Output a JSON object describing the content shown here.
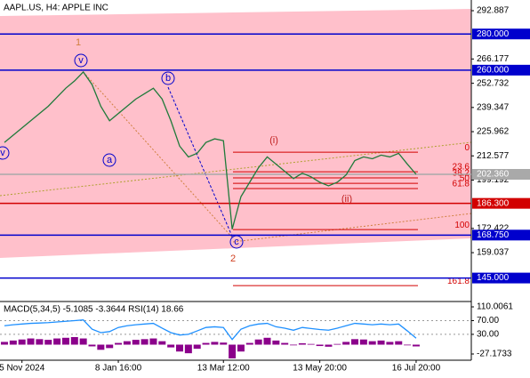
{
  "chart_data": {
    "type": "line",
    "title": "AAPL.US, H4:  APPLE INC",
    "categories": [
      null,
      null,
      "5 Nov 2024",
      null,
      null,
      null,
      null,
      null,
      null,
      null,
      null,
      null,
      null,
      "8 Jan 16:00",
      null,
      null,
      null,
      null,
      null,
      null,
      null,
      null,
      null,
      null,
      null,
      "13 Mar 12:00",
      null,
      null,
      null,
      null,
      null,
      null,
      null,
      null,
      null,
      null,
      "13 May 20:00",
      null,
      null,
      null,
      null,
      null,
      null,
      null,
      null,
      null,
      null,
      "16 Jul 20:00"
    ],
    "values": [
      220,
      224,
      228,
      232,
      236,
      240,
      245,
      250,
      254,
      259,
      252,
      240,
      232,
      236,
      240,
      244,
      247,
      250,
      244,
      232,
      218,
      212,
      214,
      220,
      222,
      221,
      172,
      190,
      198,
      206,
      212,
      208,
      204,
      200,
      203,
      201,
      198,
      196,
      198,
      202,
      210,
      212,
      211,
      213,
      212,
      214,
      208,
      202.36
    ],
    "color": "#1f7a3a",
    "ylim": [
      132.5,
      298.8
    ],
    "yticks": [
      292.887,
      266.177,
      252.732,
      239.347,
      225.962,
      212.577,
      199.192,
      172.422,
      159.037
    ],
    "levels": [
      {
        "value": 280,
        "label": "280.000",
        "color": "#0000cd"
      },
      {
        "value": 260,
        "label": "260.000",
        "color": "#0000cd"
      },
      {
        "value": 202.36,
        "label": "202.360",
        "color": "#a9a9a9"
      },
      {
        "value": 186.3,
        "label": "186.300",
        "color": "#d20000"
      },
      {
        "value": 168.75,
        "label": "168.750",
        "color": "#0000cd"
      },
      {
        "value": 145,
        "label": "145.000",
        "color": "#0000cd"
      }
    ],
    "fib_levels": [
      {
        "ratio": 0.0,
        "price": 214.6
      },
      {
        "ratio": 23.6,
        "price": 203.8
      },
      {
        "ratio": 38.2,
        "price": 200.4
      },
      {
        "ratio": 50.0,
        "price": 197.4
      },
      {
        "ratio": 61.8,
        "price": 194.5
      },
      {
        "ratio": 100.0,
        "price": 171.8
      },
      {
        "ratio": 161.8,
        "price": 140.8
      }
    ],
    "fib_color": "#d20000",
    "wave_labels": [
      "1",
      "v",
      "b",
      "a",
      "v",
      "c",
      "2",
      "(i)",
      "(ii)"
    ],
    "indicator": {
      "label": "MACD(5,34,5) -5.1085 -3.3644 RSI(14) 18.66",
      "macd": [
        8,
        12,
        15,
        18,
        16,
        14,
        18,
        20,
        22,
        18,
        -5,
        -15,
        -10,
        5,
        10,
        14,
        16,
        18,
        10,
        -8,
        -20,
        -25,
        -12,
        5,
        8,
        6,
        -40,
        -20,
        5,
        15,
        20,
        12,
        5,
        -2,
        4,
        2,
        -4,
        -6,
        2,
        8,
        16,
        15,
        10,
        12,
        8,
        10,
        -2,
        -5.1085
      ],
      "macd_color": "#8b008b",
      "rsi": [
        55,
        58,
        60,
        62,
        63,
        64,
        66,
        68,
        70,
        72,
        45,
        35,
        38,
        50,
        55,
        58,
        60,
        62,
        48,
        35,
        28,
        30,
        40,
        50,
        52,
        50,
        15,
        45,
        55,
        60,
        62,
        52,
        48,
        42,
        50,
        47,
        44,
        42,
        48,
        55,
        62,
        60,
        58,
        60,
        58,
        60,
        40,
        18.66
      ],
      "rsi_color": "#1e90ff",
      "ylim": [
        -45.3,
        120.4
      ],
      "yticks": [
        110.0061,
        {
          "value": 70,
          "label": "70.00"
        },
        {
          "value": 30,
          "label": "30.00"
        },
        -27.1733
      ]
    }
  }
}
